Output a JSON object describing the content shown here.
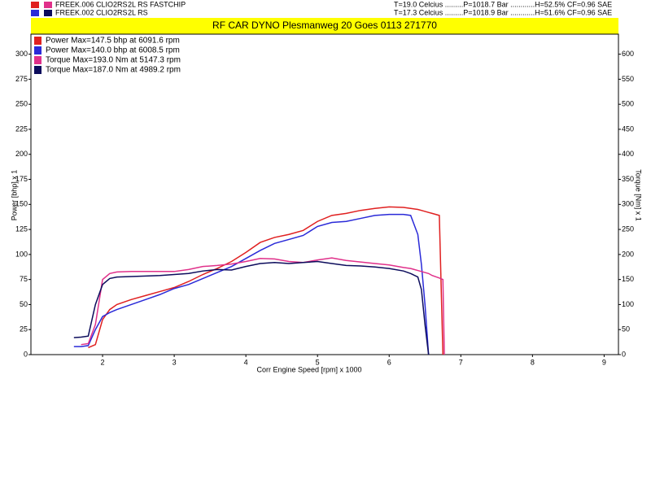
{
  "header": {
    "runs": [
      {
        "file": "FREEK.006 CLIO2RS",
        "description": "2L RS FASTCHIP",
        "conditions": "T=19.0 Celcius .........P=1018.7 Bar ............H=52.5% CF=0.96 SAE"
      },
      {
        "file": "FREEK.002 CLIO2RS",
        "description": "2L RS",
        "conditions": "T=17.3 Celcius .........P=1018.9 Bar ............H=51.6% CF=0.96 SAE"
      }
    ]
  },
  "chart_data": {
    "type": "line",
    "title": "RF CAR DYNO  Plesmanweg 20 Goes  0113 271770",
    "x_label": "Corr Engine Speed [rpm] x 1000",
    "y_label": "Power [bhp] x 1",
    "y2_label": "Torque [Nm] x 1",
    "x": [
      1.6,
      1.7,
      1.8,
      1.9,
      2.0,
      2.1,
      2.2,
      2.4,
      2.6,
      2.8,
      3.0,
      3.2,
      3.4,
      3.6,
      3.8,
      4.0,
      4.2,
      4.4,
      4.6,
      4.8,
      5.0,
      5.2,
      5.4,
      5.6,
      5.8,
      6.0,
      6.2,
      6.3,
      6.4,
      6.45,
      6.5,
      6.55,
      6.6,
      6.7,
      6.75,
      6.77
    ],
    "series": [
      {
        "name": "Power Max=147.5 bhp at 6091.6 rpm",
        "color": "#e02020",
        "axis": "y",
        "values": [
          null,
          null,
          7,
          10,
          35,
          45,
          50,
          55,
          59,
          63,
          67,
          73,
          80,
          86,
          93,
          102,
          112,
          117,
          120,
          124,
          133,
          139,
          141,
          144,
          146,
          147.5,
          147,
          146,
          145,
          144,
          143,
          142,
          141,
          139,
          0,
          null
        ]
      },
      {
        "name": "Power Max=140.0 bhp at 6008.5 rpm",
        "color": "#2a2ad8",
        "axis": "y",
        "values": [
          8,
          8,
          9,
          25,
          38,
          42,
          45,
          50,
          55,
          60,
          66,
          70,
          76,
          82,
          88,
          96,
          104,
          111,
          115,
          119,
          128,
          132,
          133,
          136,
          139,
          140,
          140,
          139,
          120,
          90,
          50,
          0,
          null,
          null,
          null,
          null
        ]
      },
      {
        "name": "Torque Max=193.0 Nm at 5147.3 rpm",
        "color": "#e0308a",
        "axis": "y2",
        "values": [
          null,
          20,
          22,
          60,
          150,
          162,
          165,
          166,
          166,
          166,
          166,
          170,
          176,
          178,
          181,
          186,
          192,
          191,
          186,
          184,
          189,
          193,
          188,
          185,
          182,
          179,
          174,
          172,
          168,
          166,
          164,
          162,
          158,
          153,
          150,
          0
        ]
      },
      {
        "name": "Torque Max=187.0 Nm at 4989.2 rpm",
        "color": "#0c0c5c",
        "axis": "y2",
        "values": [
          34,
          35,
          37,
          100,
          140,
          152,
          155,
          156,
          157,
          158,
          160,
          162,
          167,
          170,
          169,
          176,
          182,
          184,
          182,
          184,
          186,
          182,
          178,
          177,
          175,
          172,
          167,
          162,
          155,
          130,
          60,
          0,
          null,
          null,
          null,
          null
        ]
      }
    ],
    "xlim": [
      1,
      9.2
    ],
    "xticks": [
      2,
      3,
      4,
      5,
      6,
      7,
      8,
      9
    ],
    "ylim": [
      0,
      320
    ],
    "yticks": [
      0,
      25,
      50,
      75,
      100,
      125,
      150,
      175,
      200,
      225,
      250,
      275,
      300
    ],
    "y2lim": [
      0,
      640
    ],
    "y2ticks": [
      0,
      50,
      100,
      150,
      200,
      250,
      300,
      350,
      400,
      450,
      500,
      550,
      600
    ],
    "legend": "upper left",
    "title_background": "#ffff00"
  }
}
